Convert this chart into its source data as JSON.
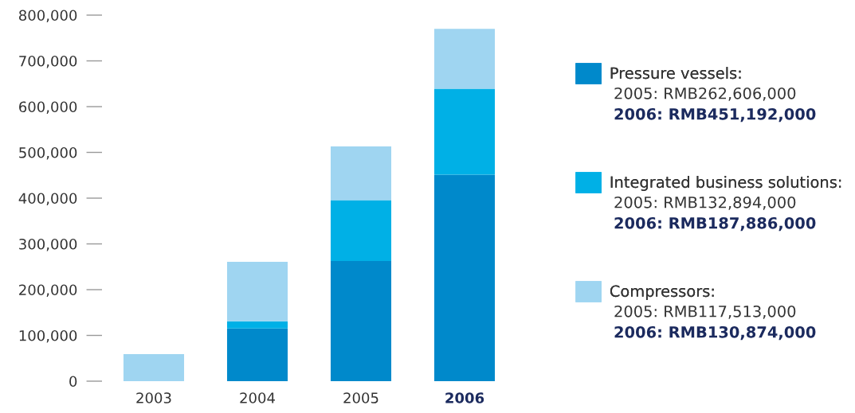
{
  "chart_data": {
    "type": "bar",
    "stacked": true,
    "categories": [
      "2003",
      "2004",
      "2005",
      "2006"
    ],
    "series": [
      {
        "name": "Pressure vessels:",
        "color": "#0089cb",
        "values": [
          0,
          115000,
          262606,
          451192
        ]
      },
      {
        "name": "Integrated business solutions:",
        "color": "#00b0e6",
        "values": [
          0,
          16000,
          132894,
          187886
        ]
      },
      {
        "name": "Compressors:",
        "color": "#9fd5f1",
        "values": [
          59000,
          130000,
          117513,
          130874
        ]
      }
    ],
    "ylim": [
      0,
      800000
    ],
    "yticks": [
      {
        "value": 0,
        "label": "0"
      },
      {
        "value": 100000,
        "label": "100,000"
      },
      {
        "value": 200000,
        "label": "200,000"
      },
      {
        "value": 300000,
        "label": "300,000"
      },
      {
        "value": 400000,
        "label": "400,000"
      },
      {
        "value": 500000,
        "label": "500,000"
      },
      {
        "value": 600000,
        "label": "600,000"
      },
      {
        "value": 700000,
        "label": "700,000"
      },
      {
        "value": 800000,
        "label": "800,000"
      }
    ],
    "annotations": [
      "2005: RMB262,606,000",
      "2006: RMB451,192,000",
      "2005: RMB132,894,000",
      "2006: RMB187,886,000",
      "2005: RMB117,513,000",
      "2006: RMB130,874,000"
    ],
    "legend": "right",
    "grid": false
  }
}
